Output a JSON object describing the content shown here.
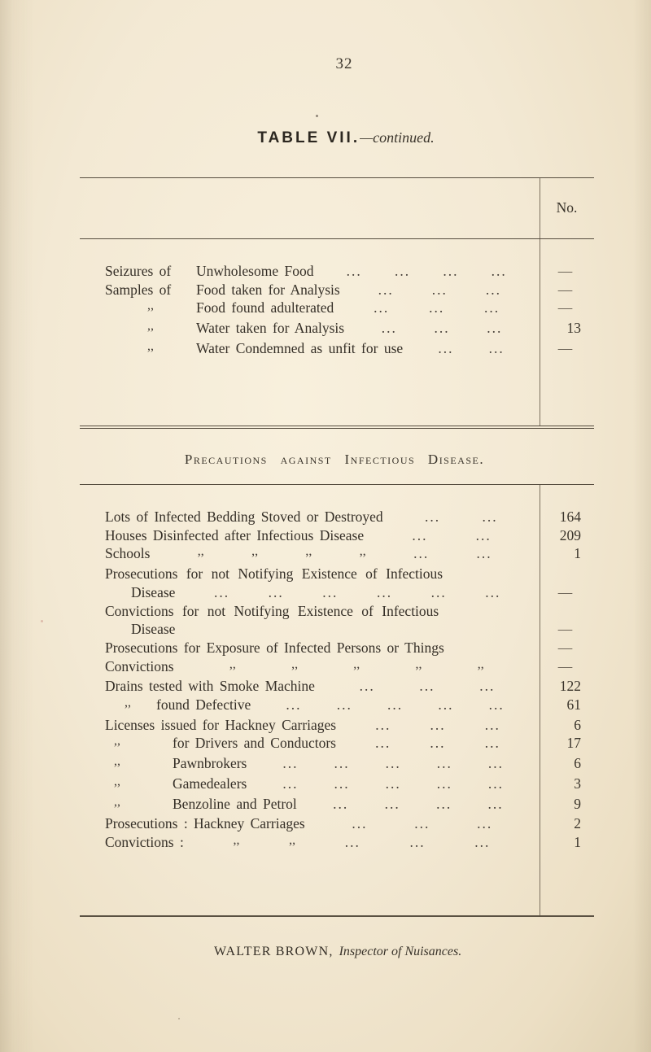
{
  "page": {
    "number": "32"
  },
  "title": {
    "main": "TABLE VII.",
    "continued": "—continued."
  },
  "glyphs": {
    "leader": "...",
    "ditto": ",,",
    "dash": "—"
  },
  "table1": {
    "header": "No.",
    "rows": [
      {
        "prefix": "Seizures of",
        "label": "Unwholesome Food",
        "dots": 4,
        "value": "—"
      },
      {
        "prefix": "Samples of",
        "label": "Food taken for Analysis",
        "dots": 3,
        "value": "—"
      },
      {
        "prefix": ",,",
        "label": "Food found adulterated",
        "dots": 3,
        "value": "—"
      },
      {
        "prefix": ",,",
        "label": "Water taken for Analysis",
        "dots": 3,
        "value": "13"
      },
      {
        "prefix": ",,",
        "label": "Water Condemned as unfit for use",
        "dots": 2,
        "value": "—"
      }
    ]
  },
  "section_heading": "Precautions against Infectious Disease.",
  "table2": {
    "rows": [
      {
        "label": "Lots of Infected Bedding Stoved or Destroyed",
        "dots": 2,
        "value": "164"
      },
      {
        "label": "Houses Disinfected after Infectious Disease",
        "dots": 2,
        "value": "209"
      },
      {
        "label": "Schools",
        "dittos": 4,
        "dots": 2,
        "value": "1"
      },
      {
        "label": "Prosecutions for not Notifying Existence of Infectious",
        "dots": 0,
        "value": "",
        "cls": "spread"
      },
      {
        "label": "Disease",
        "dots": 6,
        "value": "—",
        "cls": "ind1"
      },
      {
        "label": "Convictions for not Notifying Existence of Infectious",
        "dots": 0,
        "value": "",
        "cls": "spread"
      },
      {
        "label": "Disease",
        "dots": 0,
        "value": "—",
        "cls": "ind1"
      },
      {
        "label": "Prosecutions for Exposure of Infected Persons or Things",
        "dots": 0,
        "value": "—"
      },
      {
        "label": "Convictions",
        "dittos": 5,
        "dots": 0,
        "value": "—"
      },
      {
        "label": "Drains tested with Smoke Machine",
        "dots": 3,
        "value": "122"
      },
      {
        "prefix": ",,",
        "label": "found Defective",
        "dots": 5,
        "value": "61",
        "cls": "found"
      },
      {
        "label": "Licenses issued for Hackney Carriages",
        "dots": 3,
        "value": "6"
      },
      {
        "prefix": ",,",
        "label": "for Drivers and Conductors",
        "dots": 3,
        "value": "17",
        "cls": "sub"
      },
      {
        "prefix": ",,",
        "label": "Pawnbrokers",
        "dots": 5,
        "value": "6",
        "cls": "sub"
      },
      {
        "prefix": ",,",
        "label": "Gamedealers",
        "dots": 5,
        "value": "3",
        "cls": "sub"
      },
      {
        "prefix": ",,",
        "label": "Benzoline and Petrol",
        "dots": 4,
        "value": "9",
        "cls": "sub"
      },
      {
        "label": "Prosecutions : Hackney Carriages",
        "dots": 3,
        "value": "2"
      },
      {
        "label": "Convictions :",
        "dittos": 2,
        "dots": 3,
        "value": "1"
      }
    ]
  },
  "footer": {
    "name": "WALTER BROWN,",
    "role": "Inspector of Nuisances."
  }
}
